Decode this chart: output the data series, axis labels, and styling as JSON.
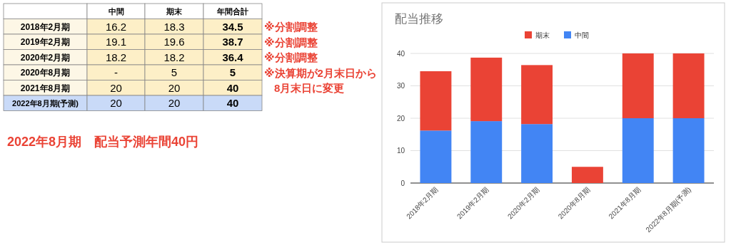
{
  "chart_data": [
    {
      "type": "other",
      "categories": [
        "2018年2月期",
        "2019年2月期",
        "2020年2月期",
        "2020年8月期",
        "2021年8月期",
        "2022年8月期(予測)"
      ],
      "annotations": [
        "中間",
        "期末",
        "年間合計",
        "16.2",
        "18.3",
        "34.5",
        "19.1",
        "19.6",
        "38.7",
        "18.2",
        "18.2",
        "36.4",
        "-",
        "5",
        "5",
        "20",
        "20",
        "40",
        "20",
        "20",
        "40",
        "※分割調整",
        "※分割調整",
        "※分割調整",
        "※決算期が2月末日から 8月末日に変更",
        "2022年8月期　配当予測年間40円"
      ]
    },
    {
      "type": "bar",
      "stacked": true,
      "title": "配当推移",
      "categories": [
        "2018年2月期",
        "2019年2月期",
        "2020年2月期",
        "2020年8月期",
        "2021年8月期",
        "2022年8月期(予測)"
      ],
      "series": [
        {
          "name": "中間",
          "color": "#4285f4",
          "values": [
            16.2,
            19.1,
            18.2,
            null,
            20,
            20
          ]
        },
        {
          "name": "期末",
          "color": "#ea4335",
          "values": [
            18.3,
            19.6,
            18.2,
            5,
            20,
            20
          ]
        }
      ],
      "ylim": [
        0,
        40
      ],
      "yticks": [
        0,
        10,
        20,
        30,
        40
      ],
      "grid": "y",
      "legend": "top"
    }
  ]
}
